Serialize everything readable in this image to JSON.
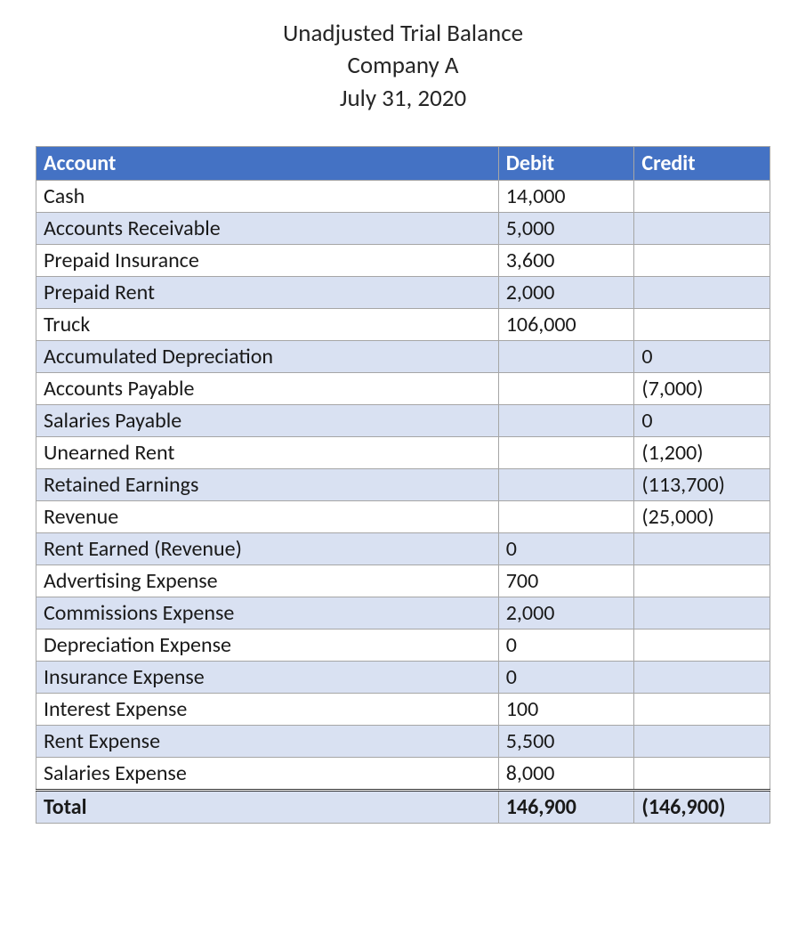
{
  "header": {
    "title": "Unadjusted Trial Balance",
    "company": "Company A",
    "date": "July 31, 2020"
  },
  "table": {
    "columns": {
      "account": "Account",
      "debit": "Debit",
      "credit": "Credit"
    },
    "colors": {
      "header_bg": "#4472c4",
      "header_text": "#ffffff",
      "stripe_a": "#ffffff",
      "stripe_b": "#d9e1f2",
      "border": "#a6a6a6",
      "text": "#1a1a1a"
    },
    "fontsizes": {
      "header": 27,
      "body": 24
    },
    "rows": [
      {
        "account": "Cash",
        "debit": "14,000",
        "credit": ""
      },
      {
        "account": "Accounts Receivable",
        "debit": "5,000",
        "credit": ""
      },
      {
        "account": "Prepaid Insurance",
        "debit": "3,600",
        "credit": ""
      },
      {
        "account": "Prepaid Rent",
        "debit": "2,000",
        "credit": ""
      },
      {
        "account": "Truck",
        "debit": "106,000",
        "credit": ""
      },
      {
        "account": "Accumulated Depreciation",
        "debit": "",
        "credit": "0"
      },
      {
        "account": "Accounts Payable",
        "debit": "",
        "credit": "(7,000)"
      },
      {
        "account": "Salaries Payable",
        "debit": "",
        "credit": "0"
      },
      {
        "account": "Unearned Rent",
        "debit": "",
        "credit": "(1,200)"
      },
      {
        "account": "Retained Earnings",
        "debit": "",
        "credit": "(113,700)"
      },
      {
        "account": "Revenue",
        "debit": "",
        "credit": "(25,000)"
      },
      {
        "account": "Rent Earned (Revenue)",
        "debit": "0",
        "credit": ""
      },
      {
        "account": "Advertising Expense",
        "debit": "700",
        "credit": ""
      },
      {
        "account": "Commissions Expense",
        "debit": "2,000",
        "credit": ""
      },
      {
        "account": "Depreciation Expense",
        "debit": "0",
        "credit": ""
      },
      {
        "account": "Insurance Expense",
        "debit": "0",
        "credit": ""
      },
      {
        "account": "Interest Expense",
        "debit": "100",
        "credit": ""
      },
      {
        "account": "Rent Expense",
        "debit": "5,500",
        "credit": ""
      },
      {
        "account": "Salaries Expense",
        "debit": "8,000",
        "credit": ""
      }
    ],
    "total": {
      "label": "Total",
      "debit": "146,900",
      "credit": "(146,900)"
    }
  }
}
